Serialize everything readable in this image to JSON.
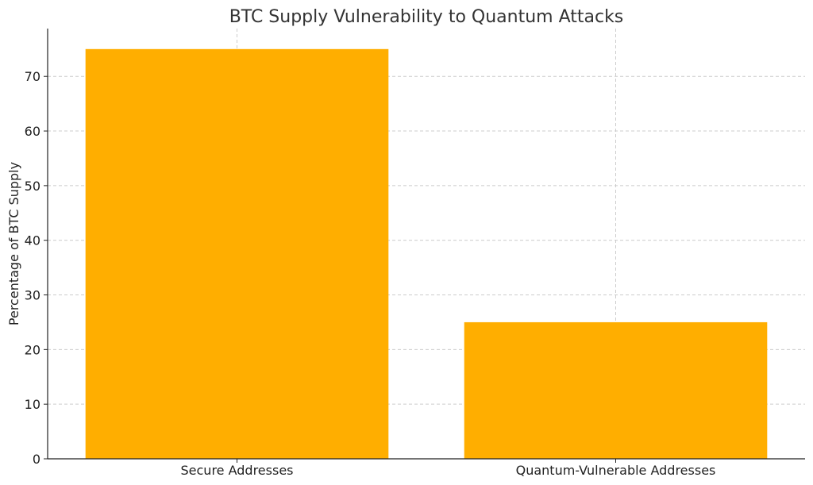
{
  "chart_data": {
    "type": "bar",
    "title": "BTC Supply Vulnerability to Quantum Attacks",
    "xlabel": "",
    "ylabel": "Percentage of BTC Supply",
    "categories": [
      "Secure Addresses",
      "Quantum-Vulnerable Addresses"
    ],
    "values": [
      75,
      25
    ],
    "ylim": [
      0,
      78.75
    ],
    "yticks": [
      "0",
      "10",
      "20",
      "30",
      "40",
      "50",
      "60",
      "70"
    ],
    "grid": true,
    "bar_color": "#FFAE00"
  }
}
